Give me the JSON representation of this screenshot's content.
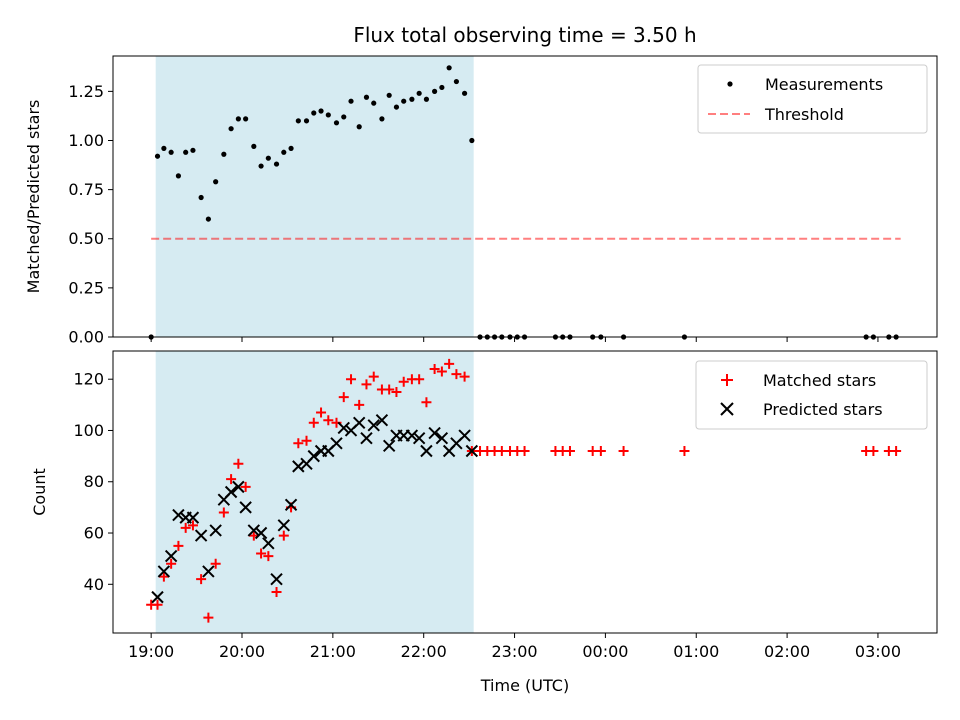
{
  "chart_data": [
    {
      "type": "scatter",
      "title": "Flux total observing time = 3.50 h",
      "xlabel": "",
      "ylabel": "Matched/Predicted stars",
      "ylim": [
        0,
        1.43
      ],
      "yticks": [
        "0.00",
        "0.25",
        "0.50",
        "0.75",
        "1.00",
        "1.25"
      ],
      "ytick_values": [
        0,
        0.25,
        0.5,
        0.75,
        1.0,
        1.25
      ],
      "xlim": [
        -0.42,
        8.65
      ],
      "shaded_span": [
        0.05,
        3.55
      ],
      "shade_color": "#add8e6",
      "legend": {
        "position": "top-right",
        "entries": [
          "Measurements",
          "Threshold"
        ]
      },
      "threshold": {
        "name": "Threshold",
        "value": 0.5,
        "x": [
          0.0,
          8.25
        ],
        "color": "#ff0000"
      },
      "series": [
        {
          "name": "Measurements",
          "color": "#000000",
          "x": [
            0.0,
            0.07,
            0.14,
            0.22,
            0.3,
            0.38,
            0.46,
            0.55,
            0.63,
            0.71,
            0.8,
            0.88,
            0.96,
            1.04,
            1.13,
            1.21,
            1.29,
            1.38,
            1.46,
            1.54,
            1.62,
            1.71,
            1.79,
            1.87,
            1.95,
            2.04,
            2.12,
            2.2,
            2.29,
            2.37,
            2.45,
            2.54,
            2.62,
            2.7,
            2.78,
            2.87,
            2.95,
            3.03,
            3.12,
            3.2,
            3.28,
            3.36,
            3.45,
            3.53,
            3.62,
            3.7,
            3.78,
            3.86,
            3.95,
            4.03,
            4.11,
            4.45,
            4.53,
            4.61,
            4.86,
            4.95,
            5.2,
            5.87,
            7.87,
            7.95,
            8.12,
            8.2
          ],
          "y": [
            0.0,
            0.92,
            0.96,
            0.94,
            0.82,
            0.94,
            0.95,
            0.71,
            0.6,
            0.79,
            0.93,
            1.06,
            1.11,
            1.11,
            0.97,
            0.87,
            0.91,
            0.88,
            0.94,
            0.96,
            1.1,
            1.1,
            1.14,
            1.15,
            1.13,
            1.09,
            1.12,
            1.2,
            1.07,
            1.22,
            1.19,
            1.11,
            1.23,
            1.17,
            1.2,
            1.21,
            1.24,
            1.21,
            1.25,
            1.27,
            1.37,
            1.3,
            1.24,
            1.0,
            0.0,
            0.0,
            0.0,
            0.0,
            0.0,
            0.0,
            0.0,
            0.0,
            0.0,
            0.0,
            0.0,
            0.0,
            0.0,
            0.0,
            0.0,
            0.0,
            0.0,
            0.0
          ]
        }
      ]
    },
    {
      "type": "scatter",
      "title": "",
      "xlabel": "Time (UTC)",
      "ylabel": "Count",
      "ylim": [
        21,
        131
      ],
      "yticks": [
        "40",
        "60",
        "80",
        "100",
        "120"
      ],
      "ytick_values": [
        40,
        60,
        80,
        100,
        120
      ],
      "xlim": [
        -0.42,
        8.65
      ],
      "xticks": [
        "19:00",
        "20:00",
        "21:00",
        "22:00",
        "23:00",
        "00:00",
        "01:00",
        "02:00",
        "03:00"
      ],
      "xtick_values": [
        0,
        1,
        2,
        3,
        4,
        5,
        6,
        7,
        8
      ],
      "shaded_span": [
        0.05,
        3.55
      ],
      "legend": {
        "position": "top-right",
        "entries": [
          "Matched stars",
          "Predicted stars"
        ]
      },
      "series": [
        {
          "name": "Matched stars",
          "marker": "plus",
          "color": "#ff0000",
          "x": [
            0.0,
            0.07,
            0.14,
            0.22,
            0.3,
            0.38,
            0.46,
            0.55,
            0.63,
            0.71,
            0.8,
            0.88,
            0.96,
            1.04,
            1.13,
            1.21,
            1.29,
            1.38,
            1.46,
            1.54,
            1.62,
            1.71,
            1.79,
            1.87,
            1.95,
            2.04,
            2.12,
            2.2,
            2.29,
            2.37,
            2.45,
            2.54,
            2.62,
            2.7,
            2.78,
            2.87,
            2.95,
            3.03,
            3.12,
            3.2,
            3.28,
            3.36,
            3.45,
            3.53,
            3.62,
            3.7,
            3.78,
            3.86,
            3.95,
            4.03,
            4.11,
            4.45,
            4.53,
            4.61,
            4.86,
            4.95,
            5.2,
            5.87,
            7.87,
            7.95,
            8.12,
            8.2
          ],
          "y": [
            32,
            32,
            43,
            48,
            55,
            62,
            63,
            42,
            27,
            48,
            68,
            81,
            87,
            78,
            59,
            52,
            51,
            37,
            59,
            70,
            95,
            96,
            103,
            107,
            104,
            103,
            113,
            120,
            110,
            118,
            121,
            116,
            116,
            115,
            119,
            120,
            120,
            111,
            124,
            123,
            126,
            122,
            121,
            92,
            92,
            92,
            92,
            92,
            92,
            92,
            92,
            92,
            92,
            92,
            92,
            92,
            92,
            92,
            92,
            92,
            92,
            92
          ]
        },
        {
          "name": "Predicted stars",
          "marker": "x",
          "color": "#000000",
          "x": [
            0.07,
            0.14,
            0.22,
            0.3,
            0.38,
            0.46,
            0.55,
            0.63,
            0.71,
            0.8,
            0.88,
            0.96,
            1.04,
            1.13,
            1.21,
            1.29,
            1.38,
            1.46,
            1.54,
            1.62,
            1.71,
            1.79,
            1.87,
            1.95,
            2.04,
            2.12,
            2.2,
            2.29,
            2.37,
            2.45,
            2.54,
            2.62,
            2.7,
            2.78,
            2.87,
            2.95,
            3.03,
            3.12,
            3.2,
            3.28,
            3.36,
            3.45,
            3.53
          ],
          "y": [
            35,
            45,
            51,
            67,
            66,
            66,
            59,
            45,
            61,
            73,
            76,
            78,
            70,
            61,
            60,
            56,
            42,
            63,
            71,
            86,
            87,
            90,
            92,
            92,
            95,
            101,
            100,
            103,
            97,
            102,
            104,
            94,
            98,
            98,
            98,
            97,
            92,
            99,
            97,
            92,
            95,
            98,
            92
          ]
        }
      ]
    }
  ]
}
